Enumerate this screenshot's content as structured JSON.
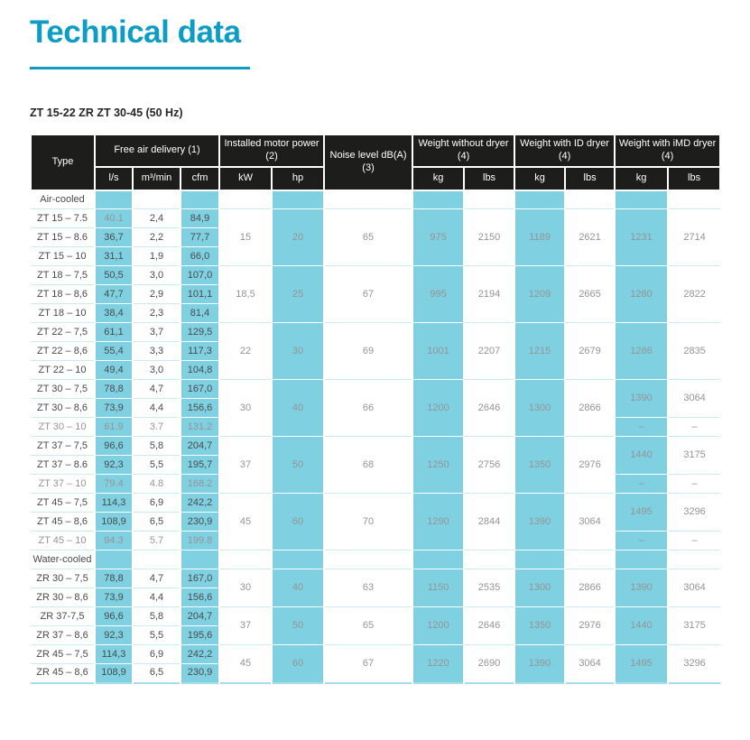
{
  "page": {
    "title": "Technical data",
    "subtitle": "ZT 15-22 ZR ZT 30-45 (50 Hz)"
  },
  "colors": {
    "accent_cyan": "#0d9cc4",
    "highlight_cell": "#7fd1e2",
    "header_bg": "#1d1d1b",
    "row_line": "#cde9f3",
    "text_dark": "#4a4a4a",
    "text_gray": "#949494"
  },
  "table": {
    "header": {
      "type_label": "Type",
      "groups": [
        {
          "label": "Free air delivery (1)",
          "cols": [
            "l/s",
            "m³/min",
            "cfm"
          ]
        },
        {
          "label": "Installed motor power (2)",
          "cols": [
            "kW",
            "hp"
          ]
        },
        {
          "label": "Noise level dB(A) (3)",
          "cols": []
        },
        {
          "label": "Weight without dryer (4)",
          "cols": [
            "kg",
            "lbs"
          ]
        },
        {
          "label": "Weight with ID dryer (4)",
          "cols": [
            "kg",
            "lbs"
          ]
        },
        {
          "label": "Weight with iMD dryer (4)",
          "cols": [
            "kg",
            "lbs"
          ]
        }
      ]
    },
    "sections": [
      {
        "label": "Air-cooled",
        "groups": [
          {
            "rows": [
              {
                "type": "ZT 15 – 7.5",
                "fad": [
                  "40.1",
                  "2,4",
                  "84,9"
                ],
                "gray_cells": [
                  0
                ]
              },
              {
                "type": "ZT 15 – 8.6",
                "fad": [
                  "36,7",
                  "2,2",
                  "77,7"
                ]
              },
              {
                "type": "ZT 15 – 10",
                "fad": [
                  "31,1",
                  "1,9",
                  "66,0"
                ]
              }
            ],
            "kw": "15",
            "hp": "20",
            "noise": "65",
            "weight_no_dryer": {
              "kg": "975",
              "lbs": "2150"
            },
            "weight_id_dryer": {
              "kg": "1189",
              "lbs": "2621"
            },
            "weight_imd_dryer": [
              {
                "kg": "1231",
                "lbs": "2714",
                "span": 3
              }
            ]
          },
          {
            "rows": [
              {
                "type": "ZT 18 – 7,5",
                "fad": [
                  "50,5",
                  "3,0",
                  "107,0"
                ]
              },
              {
                "type": "ZT 18 – 8,6",
                "fad": [
                  "47,7",
                  "2,9",
                  "101,1"
                ]
              },
              {
                "type": "ZT 18 – 10",
                "fad": [
                  "38,4",
                  "2,3",
                  "81,4"
                ]
              }
            ],
            "kw": "18,5",
            "hp": "25",
            "noise": "67",
            "weight_no_dryer": {
              "kg": "995",
              "lbs": "2194"
            },
            "weight_id_dryer": {
              "kg": "1209",
              "lbs": "2665"
            },
            "weight_imd_dryer": [
              {
                "kg": "1280",
                "lbs": "2822",
                "span": 3
              }
            ]
          },
          {
            "rows": [
              {
                "type": "ZT 22 – 7,5",
                "fad": [
                  "61,1",
                  "3,7",
                  "129,5"
                ]
              },
              {
                "type": "ZT 22 – 8,6",
                "fad": [
                  "55,4",
                  "3,3",
                  "117,3"
                ]
              },
              {
                "type": "ZT 22 – 10",
                "fad": [
                  "49,4",
                  "3,0",
                  "104,8"
                ]
              }
            ],
            "kw": "22",
            "hp": "30",
            "noise": "69",
            "weight_no_dryer": {
              "kg": "1001",
              "lbs": "2207"
            },
            "weight_id_dryer": {
              "kg": "1215",
              "lbs": "2679"
            },
            "weight_imd_dryer": [
              {
                "kg": "1286",
                "lbs": "2835",
                "span": 3
              }
            ]
          },
          {
            "rows": [
              {
                "type": "ZT 30 – 7,5",
                "fad": [
                  "78,8",
                  "4,7",
                  "167,0"
                ]
              },
              {
                "type": "ZT 30 – 8,6",
                "fad": [
                  "73,9",
                  "4,4",
                  "156,6"
                ]
              },
              {
                "type": "ZT 30 – 10",
                "fad": [
                  "61.9",
                  "3.7",
                  "131.2"
                ],
                "gray": true
              }
            ],
            "kw": "30",
            "hp": "40",
            "noise": "66",
            "weight_no_dryer": {
              "kg": "1200",
              "lbs": "2646"
            },
            "weight_id_dryer": {
              "kg": "1300",
              "lbs": "2866"
            },
            "weight_imd_dryer": [
              {
                "kg": "1390",
                "lbs": "3064",
                "span": 2
              },
              {
                "kg": "–",
                "lbs": "–",
                "span": 1
              }
            ]
          },
          {
            "rows": [
              {
                "type": "ZT 37 – 7,5",
                "fad": [
                  "96,6",
                  "5,8",
                  "204,7"
                ]
              },
              {
                "type": "ZT 37 – 8.6",
                "fad": [
                  "92,3",
                  "5,5",
                  "195,7"
                ]
              },
              {
                "type": "ZT 37 – 10",
                "fad": [
                  "79.4",
                  "4.8",
                  "168.2"
                ],
                "gray": true
              }
            ],
            "kw": "37",
            "hp": "50",
            "noise": "68",
            "weight_no_dryer": {
              "kg": "1250",
              "lbs": "2756"
            },
            "weight_id_dryer": {
              "kg": "1350",
              "lbs": "2976"
            },
            "weight_imd_dryer": [
              {
                "kg": "1440",
                "lbs": "3175",
                "span": 2
              },
              {
                "kg": "–",
                "lbs": "–",
                "span": 1
              }
            ]
          },
          {
            "rows": [
              {
                "type": "ZT 45 – 7,5",
                "fad": [
                  "114,3",
                  "6,9",
                  "242,2"
                ]
              },
              {
                "type": "ZT 45 – 8,6",
                "fad": [
                  "108,9",
                  "6,5",
                  "230,9"
                ]
              },
              {
                "type": "ZT 45 – 10",
                "fad": [
                  "94.3",
                  "5.7",
                  "199.8"
                ],
                "gray": true
              }
            ],
            "kw": "45",
            "hp": "60",
            "noise": "70",
            "weight_no_dryer": {
              "kg": "1290",
              "lbs": "2844"
            },
            "weight_id_dryer": {
              "kg": "1390",
              "lbs": "3064"
            },
            "weight_imd_dryer": [
              {
                "kg": "1495",
                "lbs": "3296",
                "span": 2
              },
              {
                "kg": "–",
                "lbs": "–",
                "span": 1
              }
            ]
          }
        ]
      },
      {
        "label": "Water-cooled",
        "groups": [
          {
            "rows": [
              {
                "type": "ZR 30 – 7,5",
                "fad": [
                  "78,8",
                  "4,7",
                  "167,0"
                ]
              },
              {
                "type": "ZR 30 – 8,6",
                "fad": [
                  "73,9",
                  "4,4",
                  "156,6"
                ]
              }
            ],
            "kw": "30",
            "hp": "40",
            "noise": "63",
            "weight_no_dryer": {
              "kg": "1150",
              "lbs": "2535"
            },
            "weight_id_dryer": {
              "kg": "1300",
              "lbs": "2866"
            },
            "weight_imd_dryer": [
              {
                "kg": "1390",
                "lbs": "3064",
                "span": 2
              }
            ]
          },
          {
            "rows": [
              {
                "type": "ZR 37-7,5",
                "fad": [
                  "96,6",
                  "5,8",
                  "204,7"
                ]
              },
              {
                "type": "ZR 37 – 8,6",
                "fad": [
                  "92,3",
                  "5,5",
                  "195,6"
                ]
              }
            ],
            "kw": "37",
            "hp": "50",
            "noise": "65",
            "weight_no_dryer": {
              "kg": "1200",
              "lbs": "2646"
            },
            "weight_id_dryer": {
              "kg": "1350",
              "lbs": "2976"
            },
            "weight_imd_dryer": [
              {
                "kg": "1440",
                "lbs": "3175",
                "span": 2
              }
            ]
          },
          {
            "rows": [
              {
                "type": "ZR 45 – 7,5",
                "fad": [
                  "114,3",
                  "6,9",
                  "242,2"
                ]
              },
              {
                "type": "ZR 45 – 8,6",
                "fad": [
                  "108,9",
                  "6,5",
                  "230,9"
                ]
              }
            ],
            "kw": "45",
            "hp": "60",
            "noise": "67",
            "weight_no_dryer": {
              "kg": "1220",
              "lbs": "2690"
            },
            "weight_id_dryer": {
              "kg": "1390",
              "lbs": "3064"
            },
            "weight_imd_dryer": [
              {
                "kg": "1495",
                "lbs": "3296",
                "span": 2
              }
            ]
          }
        ]
      }
    ]
  }
}
